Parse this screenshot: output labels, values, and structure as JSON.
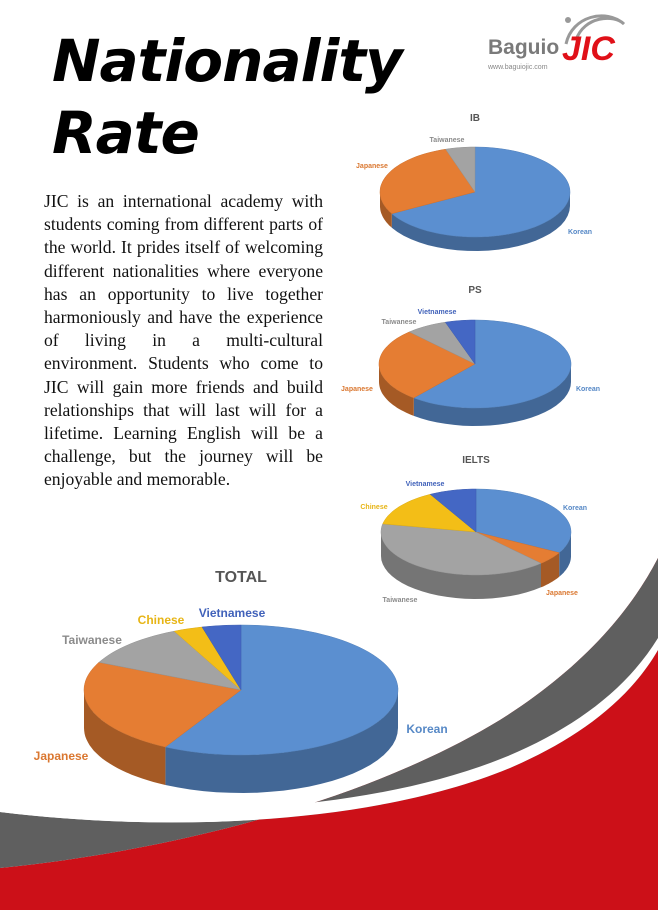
{
  "header": {
    "title_line1": "Nationality",
    "title_line2": "Rate"
  },
  "logo": {
    "name_part1": "Baguio",
    "name_part2": "JIC",
    "url": "www.baguiojic.com"
  },
  "intro_text": "JIC is an international academy with students coming from different parts of the world. It prides itself of welcoming different nationalities where everyone has an opportunity to live together harmoniously and have the experience of living in a multi-cultural environment. Students who come to JIC will gain more friends and build relationships that will last will for a lifetime. Learning English will be a challenge, but the journey will be enjoyable and memorable.",
  "colors": {
    "Korean": "#5b8fd0",
    "Japanese": "#e57d33",
    "Taiwanese": "#a3a3a3",
    "Chinese": "#f3be17",
    "Vietnamese": "#4467c4",
    "red": "#cc1018",
    "dark_gray": "#5f5f5f"
  },
  "chart_data": [
    {
      "type": "pie",
      "title": "IB",
      "categories": [
        "Korean",
        "Japanese",
        "Taiwanese"
      ],
      "values": [
        67,
        28,
        5
      ]
    },
    {
      "type": "pie",
      "title": "PS",
      "categories": [
        "Korean",
        "Japanese",
        "Taiwanese",
        "Vietnamese"
      ],
      "values": [
        61,
        27,
        7,
        5
      ]
    },
    {
      "type": "pie",
      "title": "IELTS",
      "categories": [
        "Korean",
        "Japanese",
        "Taiwanese",
        "Chinese",
        "Vietnamese"
      ],
      "values": [
        33,
        5,
        40,
        14,
        8
      ]
    },
    {
      "type": "pie",
      "title": "TOTAL",
      "categories": [
        "Korean",
        "Japanese",
        "Taiwanese",
        "Chinese",
        "Vietnamese"
      ],
      "values": [
        58,
        24,
        11,
        3,
        4
      ]
    }
  ]
}
